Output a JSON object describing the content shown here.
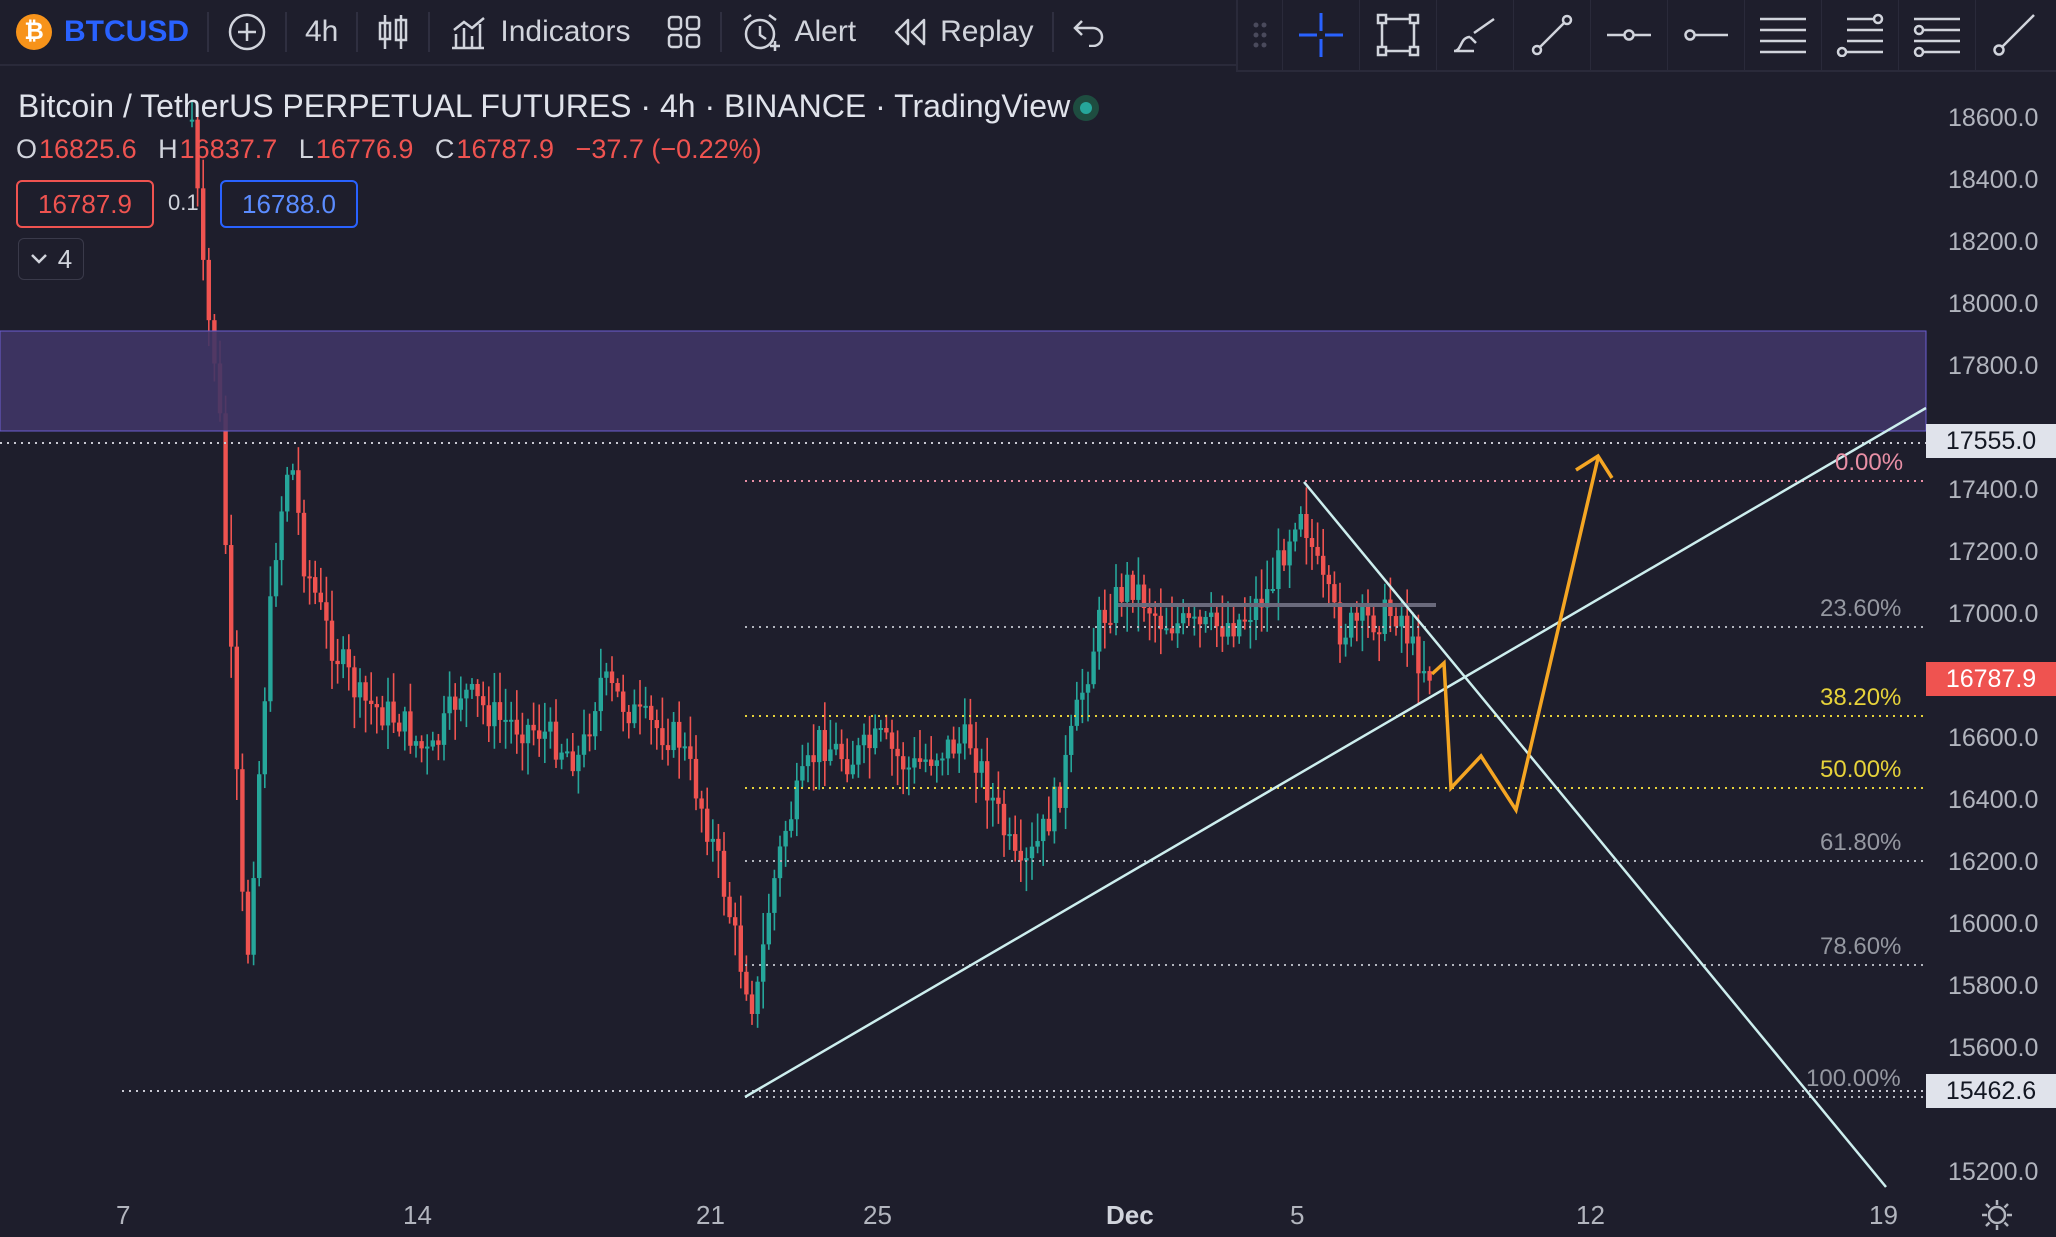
{
  "toolbar": {
    "symbol": "BTCUSD",
    "symbol_badge": "₿",
    "interval": "4h",
    "indicators_label": "Indicators",
    "alert_label": "Alert",
    "replay_label": "Replay"
  },
  "legend": {
    "title": "Bitcoin / TetherUS PERPETUAL FUTURES · 4h · BINANCE · TradingView",
    "open_key": "O",
    "open": "16825.6",
    "high_key": "H",
    "high": "16837.7",
    "low_key": "L",
    "low": "16776.9",
    "close_key": "C",
    "close": "16787.9",
    "change": "−37.7 (−0.22%)",
    "sell_price": "16787.9",
    "spread": "0.1",
    "buy_price": "16788.0",
    "study_count": "4"
  },
  "price_axis": {
    "labels": [
      "18600.0",
      "18400.0",
      "18200.0",
      "18000.0",
      "17800.0",
      "17400.0",
      "17200.0",
      "17000.0",
      "16600.0",
      "16400.0",
      "16200.0",
      "16000.0",
      "15800.0",
      "15600.0",
      "15200.0"
    ],
    "tag_top_value": "17555.0",
    "tag_last_value": "16787.9",
    "tag_low_value": "15462.6"
  },
  "time_axis": {
    "labels": [
      "7",
      "14",
      "21",
      "25",
      "Dec",
      "5",
      "12",
      "19"
    ]
  },
  "fib_levels": {
    "l0": "0.00%",
    "l236": "23.60%",
    "l382": "38.20%",
    "l50": "50.00%",
    "l618": "61.80%",
    "l786": "78.60%",
    "l100": "100.00%"
  },
  "colors": {
    "background": "#1e1e2c",
    "up": "#26a69a",
    "down": "#ef5350",
    "zone": "#3f3566",
    "trendline": "#cdeeee",
    "projection": "#f5a623",
    "fib_yellow": "#e6d23a",
    "fib_pink": "#e88fa5",
    "accent": "#2962ff"
  }
}
